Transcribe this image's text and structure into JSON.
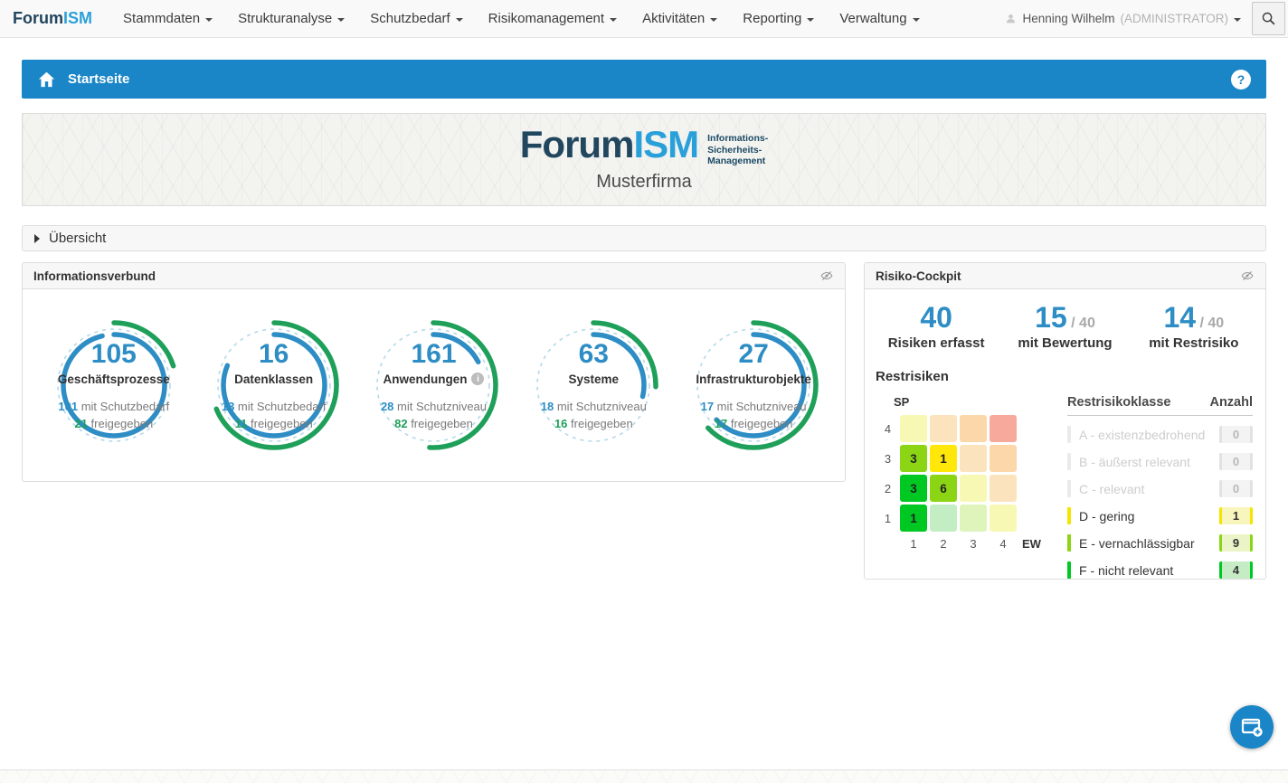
{
  "icons": {
    "help": "?",
    "info": "i"
  },
  "colors": {
    "primary": "#1a86c8",
    "accent_blue": "#2d8dc4",
    "accent_green": "#1fa05a"
  },
  "navbar": {
    "brand": {
      "part1": "Forum",
      "part2": "ISM"
    },
    "menus": [
      {
        "label": "Stammdaten"
      },
      {
        "label": "Strukturanalyse"
      },
      {
        "label": "Schutzbedarf"
      },
      {
        "label": "Risikomanagement"
      },
      {
        "label": "Aktivitäten"
      },
      {
        "label": "Reporting"
      },
      {
        "label": "Verwaltung"
      }
    ],
    "user": {
      "name": "Henning Wilhelm",
      "role": "(ADMINISTRATOR)"
    }
  },
  "titlebar": {
    "title": "Startseite"
  },
  "banner": {
    "logo_part1": "Forum",
    "logo_part2": "ISM",
    "logo_sub_lines": [
      "Informations-",
      "Sicherheits-",
      "Management"
    ],
    "company": "Musterfirma"
  },
  "accordion": {
    "label": "Übersicht"
  },
  "infoverbund": {
    "title": "Informationsverbund",
    "circles": [
      {
        "total": 105,
        "label": "Geschäftsprozesse",
        "info": false,
        "line1_value": 101,
        "line1_text": "mit Schutzbedarf",
        "line2_value": 21,
        "line2_text": "freigegeben"
      },
      {
        "total": 16,
        "label": "Datenklassen",
        "info": false,
        "line1_value": 13,
        "line1_text": "mit Schutzbedarf",
        "line2_value": 11,
        "line2_text": "freigegeben"
      },
      {
        "total": 161,
        "label": "Anwendungen",
        "info": true,
        "line1_value": 28,
        "line1_text": "mit Schutzniveau",
        "line2_value": 82,
        "line2_text": "freigegeben"
      },
      {
        "total": 63,
        "label": "Systeme",
        "info": false,
        "line1_value": 18,
        "line1_text": "mit Schutzniveau",
        "line2_value": 16,
        "line2_text": "freigegeben"
      },
      {
        "total": 27,
        "label": "Infrastrukturobjekte",
        "info": false,
        "line1_value": 17,
        "line1_text": "mit Schutzniveau",
        "line2_value": 17,
        "line2_text": "freigegeben"
      }
    ]
  },
  "cockpit": {
    "title": "Risiko-Cockpit",
    "stats": [
      {
        "value": "40",
        "of": "",
        "label": "Risiken erfasst"
      },
      {
        "value": "15",
        "of": "/ 40",
        "label": "mit Bewertung"
      },
      {
        "value": "14",
        "of": "/ 40",
        "label": "mit Restrisiko"
      }
    ],
    "restrisiken": {
      "title": "Restrisiken",
      "y_axis": "SP",
      "x_axis": "EW",
      "row_labels": [
        "4",
        "3",
        "2",
        "1"
      ],
      "col_labels": [
        "1",
        "2",
        "3",
        "4"
      ],
      "cells": [
        [
          {
            "v": "",
            "c": "#f8f8b5"
          },
          {
            "v": "",
            "c": "#fbe4bd"
          },
          {
            "v": "",
            "c": "#fbd7a9"
          },
          {
            "v": "",
            "c": "#f7a99b"
          }
        ],
        [
          {
            "v": "3",
            "c": "#8cd514"
          },
          {
            "v": "1",
            "c": "#ffe70a"
          },
          {
            "v": "",
            "c": "#fbe4bd"
          },
          {
            "v": "",
            "c": "#fbd7a9"
          }
        ],
        [
          {
            "v": "3",
            "c": "#00c822"
          },
          {
            "v": "6",
            "c": "#8cd514"
          },
          {
            "v": "",
            "c": "#f8f8b5"
          },
          {
            "v": "",
            "c": "#fbe4bd"
          }
        ],
        [
          {
            "v": "1",
            "c": "#00c822"
          },
          {
            "v": "",
            "c": "#c3eec3"
          },
          {
            "v": "",
            "c": "#def4bb"
          },
          {
            "v": "",
            "c": "#f8f8b5"
          }
        ]
      ]
    },
    "classes": {
      "header": [
        "Restrisikoklasse",
        "Anzahl"
      ],
      "rows": [
        {
          "label": "A - existenzbedrohend",
          "count": "0",
          "muted": true,
          "bar": "#eaeaea",
          "badge_bg": "#f3f3f3",
          "badge_edge": "#e2e2e2"
        },
        {
          "label": "B - äußerst relevant",
          "count": "0",
          "muted": true,
          "bar": "#eaeaea",
          "badge_bg": "#f3f3f3",
          "badge_edge": "#e2e2e2"
        },
        {
          "label": "C - relevant",
          "count": "0",
          "muted": true,
          "bar": "#eaeaea",
          "badge_bg": "#f3f3f3",
          "badge_edge": "#e2e2e2"
        },
        {
          "label": "D - gering",
          "count": "1",
          "muted": false,
          "bar": "#f5e400",
          "badge_bg": "#f8f6bd",
          "badge_edge": "#f5e400"
        },
        {
          "label": "E - vernachlässigbar",
          "count": "9",
          "muted": false,
          "bar": "#8cd514",
          "badge_bg": "#eaf4c6",
          "badge_edge": "#8cd514"
        },
        {
          "label": "F - nicht relevant",
          "count": "4",
          "muted": false,
          "bar": "#00c822",
          "badge_bg": "#c6ecc6",
          "badge_edge": "#00c822"
        }
      ]
    }
  }
}
